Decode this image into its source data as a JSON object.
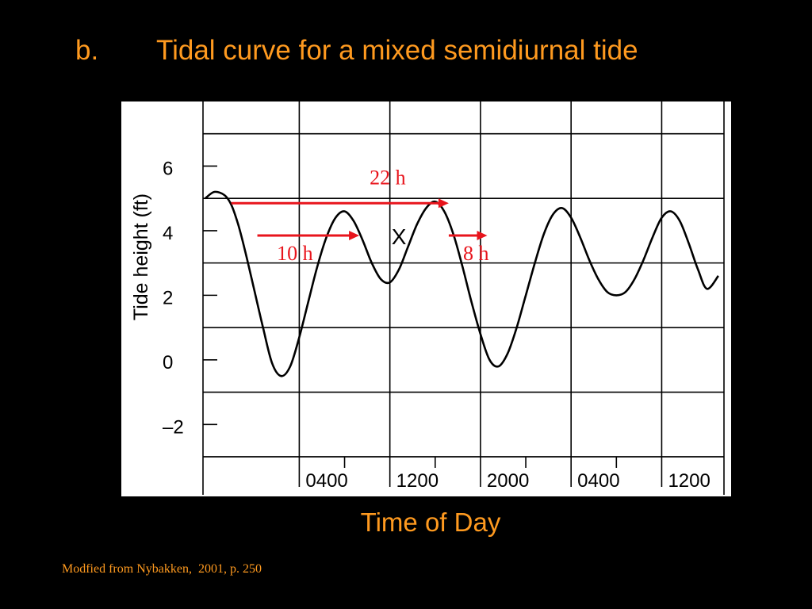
{
  "slide": {
    "title_marker": "b.",
    "title": "Tidal curve for a mixed semidiurnal tide",
    "xaxis_title": "Time of Day",
    "citation": "Modfied from Nybakken,  2001, p. 250"
  },
  "colors": {
    "background": "#000000",
    "accent": "#ff9a1f",
    "annotation": "#e8141c",
    "curve": "#000000",
    "plot_background": "#ffffff"
  },
  "chart_data": {
    "type": "line",
    "title": "",
    "xlabel": "",
    "ylabel": "Tide height (ft)",
    "x_unit": "hours",
    "xlim": [
      -4.5,
      41.5
    ],
    "ylim": [
      -3,
      8
    ],
    "x_ticks": [
      {
        "x": 4,
        "label": "0400"
      },
      {
        "x": 12,
        "label": "1200"
      },
      {
        "x": 20,
        "label": "2000"
      },
      {
        "x": 28,
        "label": "0400"
      },
      {
        "x": 36,
        "label": "1200"
      }
    ],
    "y_ticks": [
      {
        "y": 6,
        "label": "6"
      },
      {
        "y": 4,
        "label": "4"
      },
      {
        "y": 2,
        "label": "2"
      },
      {
        "y": 0,
        "label": "0"
      },
      {
        "y": -2,
        "label": "–2"
      }
    ],
    "grid": true,
    "series": [
      {
        "name": "",
        "x": [
          -4.3,
          -3.5,
          -2.6,
          -2.0,
          -1.4,
          -0.8,
          0.0,
          0.8,
          1.6,
          2.4,
          3.2,
          4.0,
          4.8,
          5.6,
          6.4,
          7.2,
          8.0,
          8.8,
          9.6,
          10.4,
          11.2,
          12.0,
          12.8,
          13.6,
          14.4,
          15.2,
          16.0,
          16.8,
          17.6,
          18.4,
          19.2,
          20.0,
          20.8,
          21.6,
          22.4,
          23.2,
          24.0,
          24.8,
          25.6,
          26.4,
          27.2,
          28.0,
          28.8,
          29.6,
          30.4,
          31.2,
          32.0,
          32.8,
          33.6,
          34.4,
          35.2,
          36.0,
          36.8,
          37.6,
          38.4,
          39.2,
          40.0,
          41.0
        ],
        "y": [
          5.0,
          5.2,
          5.1,
          4.8,
          4.2,
          3.4,
          2.2,
          1.0,
          -0.1,
          -0.5,
          -0.2,
          0.7,
          1.8,
          2.9,
          3.8,
          4.4,
          4.6,
          4.3,
          3.7,
          3.0,
          2.5,
          2.4,
          2.8,
          3.5,
          4.2,
          4.7,
          4.9,
          4.6,
          3.9,
          2.9,
          1.8,
          0.8,
          0.0,
          -0.2,
          0.2,
          1.0,
          2.0,
          3.0,
          3.9,
          4.5,
          4.7,
          4.4,
          3.8,
          3.1,
          2.5,
          2.1,
          2.0,
          2.1,
          2.5,
          3.1,
          3.8,
          4.4,
          4.6,
          4.3,
          3.6,
          2.8,
          2.2,
          2.6
        ]
      }
    ],
    "markers": [
      {
        "label": "X",
        "x": 12.8,
        "y": 3.85
      }
    ],
    "annotations": [
      {
        "label": "22 h",
        "from_x": -2.0,
        "to_x": 17.2,
        "y": 4.85
      },
      {
        "label": "10 h",
        "from_x": 0.3,
        "to_x": 9.3,
        "y": 3.85
      },
      {
        "label": "8 h",
        "from_x": 17.2,
        "to_x": 20.6,
        "y": 3.85
      }
    ]
  }
}
